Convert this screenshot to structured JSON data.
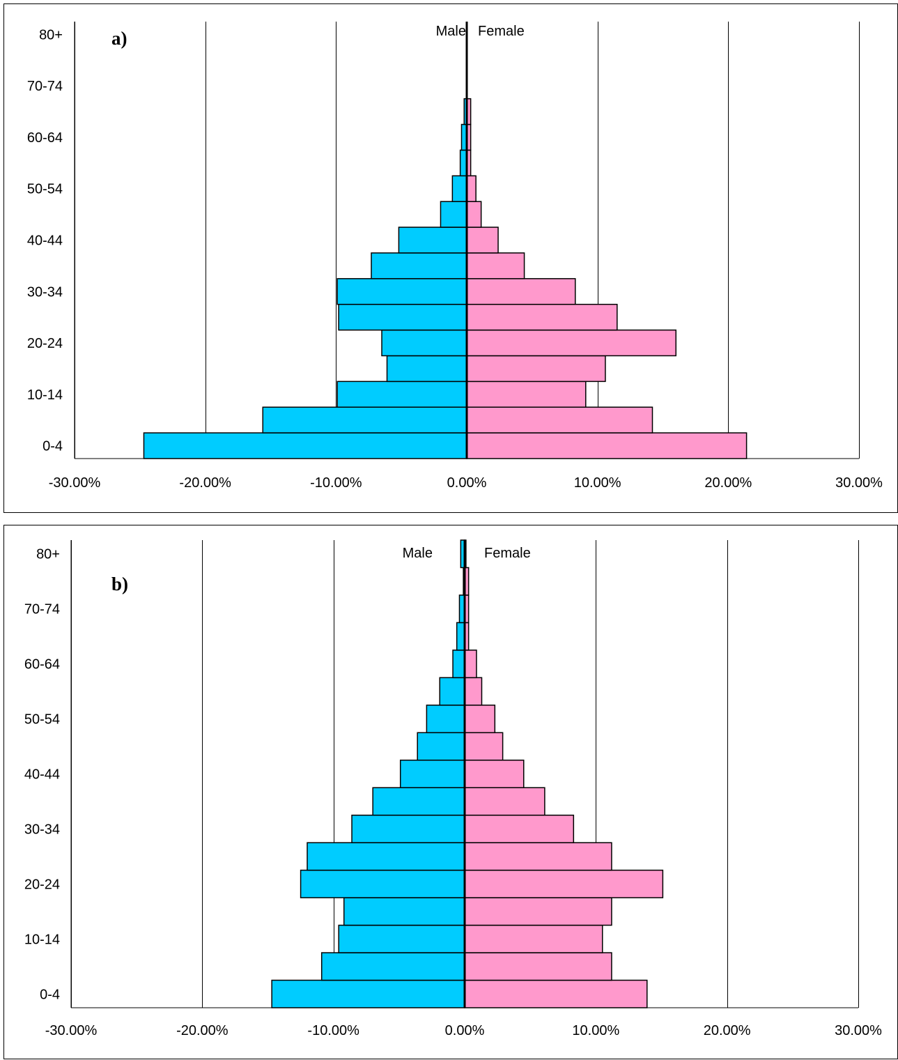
{
  "colors": {
    "male": "#00CCFF",
    "female": "#FF99CC",
    "axis": "#000000",
    "grid": "#000000"
  },
  "chart_data": [
    {
      "type": "bar",
      "panel_label": "a)",
      "male_label": "Male",
      "female_label": "Female",
      "age_groups": [
        "0-4",
        "5-9",
        "10-14",
        "15-19",
        "20-24",
        "25-29",
        "30-34",
        "35-39",
        "40-44",
        "45-49",
        "50-54",
        "55-59",
        "60-64",
        "65-69",
        "70-74",
        "75-79",
        "80+"
      ],
      "y_tick_labels": [
        "0-4",
        "",
        "10-14",
        "",
        "20-24",
        "",
        "30-34",
        "",
        "40-44",
        "",
        "50-54",
        "",
        "60-64",
        "",
        "70-74",
        "",
        "80+"
      ],
      "x_ticks": [
        -30,
        -20,
        -10,
        0,
        10,
        20,
        30
      ],
      "x_tick_labels": [
        "-30.00%",
        "-20.00%",
        "-10.00%",
        "0.00%",
        "10.00%",
        "20.00%",
        "30.00%"
      ],
      "xlim": [
        -30,
        30
      ],
      "grid": true,
      "series": [
        {
          "name": "Male",
          "values": [
            -24.7,
            -15.6,
            -9.9,
            -6.1,
            -6.5,
            -9.8,
            -9.9,
            -7.3,
            -5.2,
            -2.0,
            -1.1,
            -0.5,
            -0.4,
            -0.2,
            0,
            0,
            0
          ]
        },
        {
          "name": "Female",
          "values": [
            21.4,
            14.2,
            9.1,
            10.6,
            16.0,
            11.5,
            8.3,
            4.4,
            2.4,
            1.1,
            0.7,
            0.3,
            0.3,
            0.3,
            0,
            0,
            0
          ]
        }
      ]
    },
    {
      "type": "bar",
      "panel_label": "b)",
      "male_label": "Male",
      "female_label": "Female",
      "age_groups": [
        "0-4",
        "5-9",
        "10-14",
        "15-19",
        "20-24",
        "25-29",
        "30-34",
        "35-39",
        "40-44",
        "45-49",
        "50-54",
        "55-59",
        "60-64",
        "65-69",
        "70-74",
        "75-79",
        "80+"
      ],
      "y_tick_labels": [
        "0-4",
        "",
        "10-14",
        "",
        "20-24",
        "",
        "30-34",
        "",
        "40-44",
        "",
        "50-54",
        "",
        "60-64",
        "",
        "70-74",
        "",
        "80+"
      ],
      "x_ticks": [
        -30,
        -20,
        -10,
        0,
        10,
        20,
        30
      ],
      "x_tick_labels": [
        "-30.00%",
        "-20.00%",
        "-10.00%",
        "0.00%",
        "10.00%",
        "20.00%",
        "30.00%"
      ],
      "xlim": [
        -30,
        30
      ],
      "grid": true,
      "series": [
        {
          "name": "Male",
          "values": [
            -14.7,
            -10.9,
            -9.6,
            -9.2,
            -12.5,
            -12.0,
            -8.6,
            -7.0,
            -4.9,
            -3.6,
            -2.9,
            -1.9,
            -0.9,
            -0.6,
            -0.4,
            -0.1,
            -0.3
          ]
        },
        {
          "name": "Female",
          "values": [
            13.9,
            11.2,
            10.5,
            11.2,
            15.1,
            11.2,
            8.3,
            6.1,
            4.5,
            2.9,
            2.3,
            1.3,
            0.9,
            0.3,
            0.3,
            0.3,
            0.1
          ]
        }
      ]
    }
  ]
}
